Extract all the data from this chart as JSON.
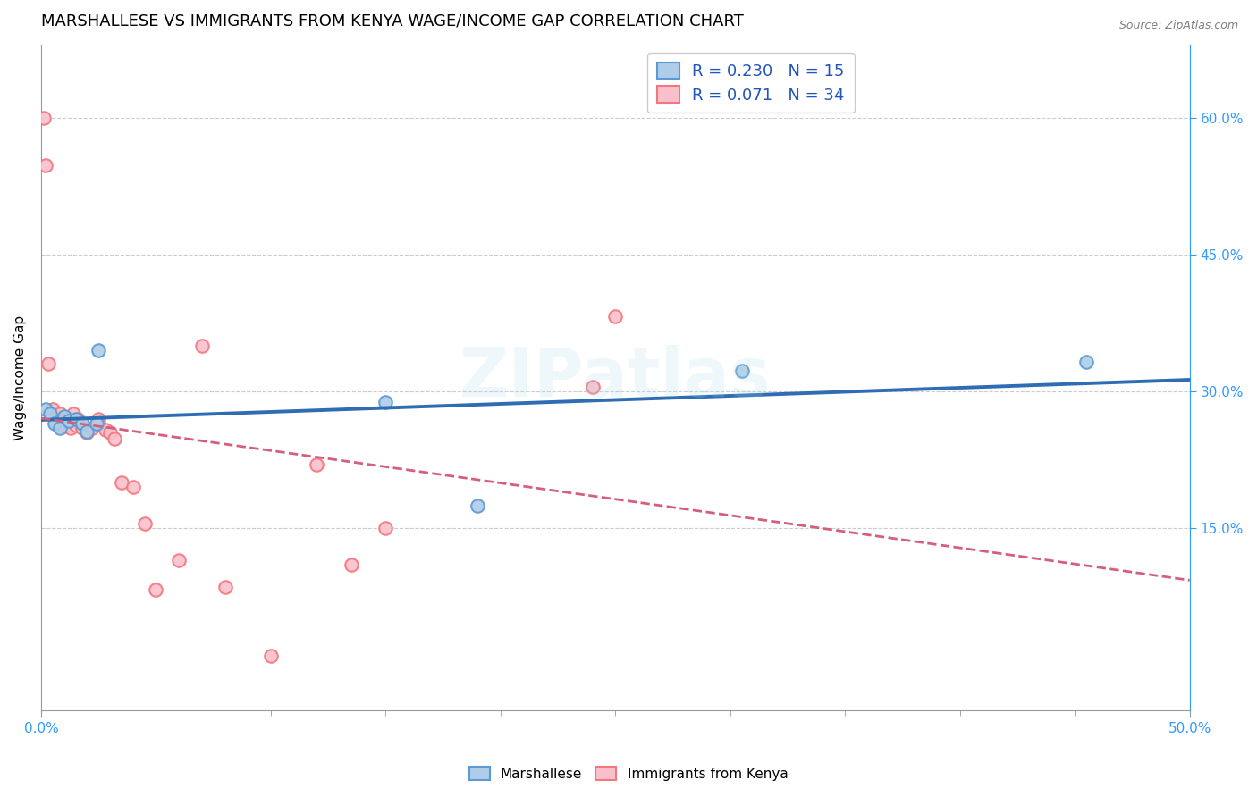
{
  "title": "MARSHALLESE VS IMMIGRANTS FROM KENYA WAGE/INCOME GAP CORRELATION CHART",
  "source": "Source: ZipAtlas.com",
  "ylabel": "Wage/Income Gap",
  "xlim": [
    0.0,
    0.5
  ],
  "ylim": [
    -0.05,
    0.68
  ],
  "yticks": [
    0.15,
    0.3,
    0.45,
    0.6
  ],
  "ytick_labels": [
    "15.0%",
    "30.0%",
    "45.0%",
    "60.0%"
  ],
  "xtick_labels_shown": [
    "0.0%",
    "50.0%"
  ],
  "xtick_positions_shown": [
    0.0,
    0.5
  ],
  "xtick_minor": [
    0.05,
    0.1,
    0.15,
    0.2,
    0.25,
    0.3,
    0.35,
    0.4,
    0.45
  ],
  "marshallese_x": [
    0.002,
    0.004,
    0.006,
    0.008,
    0.01,
    0.012,
    0.015,
    0.018,
    0.02,
    0.024,
    0.15,
    0.19,
    0.305,
    0.455,
    0.025
  ],
  "marshallese_y": [
    0.28,
    0.275,
    0.265,
    0.26,
    0.272,
    0.268,
    0.27,
    0.265,
    0.256,
    0.265,
    0.288,
    0.175,
    0.322,
    0.332,
    0.345
  ],
  "kenya_x": [
    0.001,
    0.002,
    0.003,
    0.005,
    0.007,
    0.008,
    0.009,
    0.01,
    0.012,
    0.013,
    0.014,
    0.015,
    0.016,
    0.018,
    0.02,
    0.022,
    0.025,
    0.025,
    0.028,
    0.03,
    0.032,
    0.035,
    0.04,
    0.045,
    0.05,
    0.06,
    0.07,
    0.08,
    0.1,
    0.12,
    0.135,
    0.15,
    0.24,
    0.25
  ],
  "kenya_y": [
    0.6,
    0.548,
    0.33,
    0.28,
    0.265,
    0.275,
    0.268,
    0.262,
    0.27,
    0.26,
    0.275,
    0.263,
    0.27,
    0.26,
    0.255,
    0.26,
    0.27,
    0.265,
    0.258,
    0.255,
    0.248,
    0.2,
    0.195,
    0.155,
    0.082,
    0.115,
    0.35,
    0.085,
    0.01,
    0.22,
    0.11,
    0.15,
    0.305,
    0.382
  ],
  "blue_color": "#5b9bd5",
  "pink_color": "#f4777f",
  "blue_fill": "#aecde8",
  "pink_fill": "#f9c0cc",
  "line_color_blue": "#2e6db4",
  "line_color_pink": "#d45f7a",
  "grid_color": "#cccccc",
  "axis_color": "#999999",
  "right_axis_color": "#3399ff",
  "watermark": "ZIPatlas",
  "title_fontsize": 13,
  "label_fontsize": 11,
  "tick_fontsize": 11,
  "marker_size": 110,
  "legend_r1": "R = 0.230   N = 15",
  "legend_r2": "R = 0.071   N = 34",
  "bottom_legend": [
    "Marshallese",
    "Immigrants from Kenya"
  ]
}
